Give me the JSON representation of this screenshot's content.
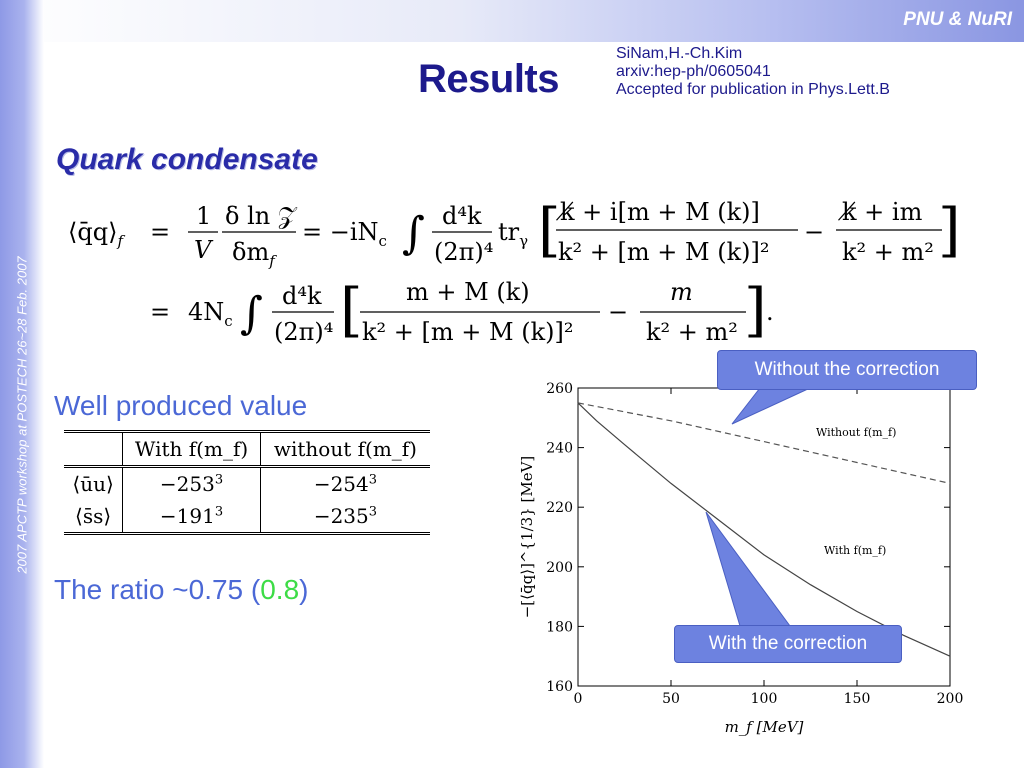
{
  "header": {
    "brand": "PNU & NuRI",
    "title": "Results",
    "credits": [
      "SiNam,H.-Ch.Kim",
      "arxiv:hep-ph/0605041",
      "Accepted for publication in Phys.Lett.B"
    ]
  },
  "sidebar": {
    "text": "2007 APCTP workshop at POSTECH  26~28 Feb. 2007"
  },
  "section": {
    "title": "Quark condensate"
  },
  "equation": {
    "lhs": "⟨q̄q⟩",
    "lhs_sub": "f",
    "one": "1",
    "V": "V",
    "dlnZ": "δ ln 𝒵",
    "dm": "δm",
    "f": "f",
    "minus_iNc": "= −iN",
    "c": "c",
    "d4k": "d⁴k",
    "twopi4": "(2π)⁴",
    "tr": "tr",
    "gamma": "γ",
    "num1": "k̸ + i[m  + M (k)]",
    "den1": "k² + [m  + M (k)]²",
    "minus": "−",
    "num2": "k̸ + im",
    "den2": "k² + m²",
    "eq": "=",
    "four": "4N",
    "num3": "m  + M (k)",
    "den3": "k² + [m  + M (k)]²",
    "num4": "m",
    "den4": "k² + m²",
    "dot": "."
  },
  "left": {
    "well_produced": "Well produced  value",
    "ratio_prefix": "The ratio ~0.75 (",
    "ratio_green": "0.8",
    "ratio_suffix": ")"
  },
  "table": {
    "headers": [
      "",
      "With f(m_f)",
      "without f(m_f)"
    ],
    "rows": [
      {
        "label": "⟨ūu⟩",
        "with_base": "−253",
        "with_exp": "3",
        "without_base": "−254",
        "without_exp": "3"
      },
      {
        "label": "⟨s̄s⟩",
        "with_base": "−191",
        "with_exp": "3",
        "without_base": "−235",
        "without_exp": "3"
      }
    ]
  },
  "chart_data": {
    "type": "line",
    "xlabel": "m_f [MeV]",
    "ylabel": "−[⟨q̄q⟩]^{1/3} [MeV]",
    "xlim": [
      0,
      200
    ],
    "ylim": [
      160,
      260
    ],
    "x_ticks": [
      0,
      50,
      100,
      150,
      200
    ],
    "y_ticks": [
      160,
      180,
      200,
      220,
      240,
      260
    ],
    "series": [
      {
        "name": "Without f(m_f)",
        "style": "dashed",
        "x": [
          0,
          50,
          100,
          150,
          200
        ],
        "y": [
          255,
          249,
          242,
          235,
          228
        ]
      },
      {
        "name": "With f(m_f)",
        "style": "solid",
        "x": [
          0,
          10,
          25,
          50,
          75,
          100,
          125,
          150,
          175,
          200
        ],
        "y": [
          255,
          249,
          241,
          228,
          216,
          204,
          194,
          185,
          177,
          170
        ]
      }
    ],
    "grid": false
  },
  "callouts": {
    "without": "Without the correction",
    "with": "With the correction"
  },
  "colors": {
    "title": "#1d1a8c",
    "section": "#2a2ca8",
    "body_text": "#4b68d6",
    "highlight": "#3ddc46",
    "callout_bg": "#6d82e0"
  }
}
